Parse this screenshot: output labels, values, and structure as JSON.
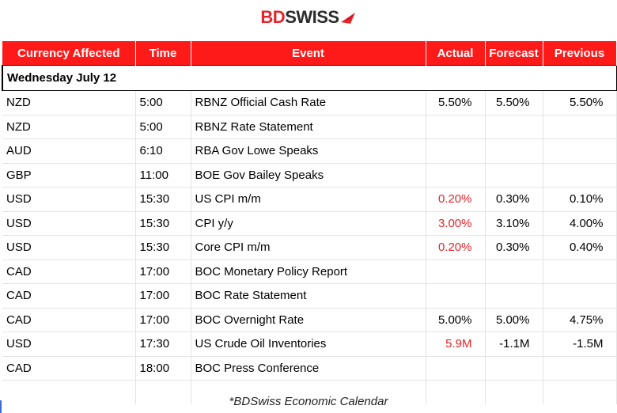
{
  "brand": {
    "part1": "BD",
    "part2": "SWISS"
  },
  "headers": [
    "Currency Affected",
    "Time",
    "Event",
    "Actual",
    "Forecast",
    "Previous"
  ],
  "date_label": "Wednesday July 12",
  "rows": [
    {
      "currency": "NZD",
      "time": "5:00",
      "event": "RBNZ Official Cash Rate",
      "actual": "5.50%",
      "forecast": "5.50%",
      "previous": "5.50%",
      "actual_red": false
    },
    {
      "currency": "NZD",
      "time": "5:00",
      "event": "RBNZ Rate Statement",
      "actual": "",
      "forecast": "",
      "previous": "",
      "actual_red": false
    },
    {
      "currency": "AUD",
      "time": "6:10",
      "event": "RBA Gov Lowe Speaks",
      "actual": "",
      "forecast": "",
      "previous": "",
      "actual_red": false
    },
    {
      "currency": "GBP",
      "time": "11:00",
      "event": "BOE Gov Bailey Speaks",
      "actual": "",
      "forecast": "",
      "previous": "",
      "actual_red": false
    },
    {
      "currency": "USD",
      "time": "15:30",
      "event": "US CPI m/m",
      "actual": "0.20%",
      "forecast": "0.30%",
      "previous": "0.10%",
      "actual_red": true
    },
    {
      "currency": "USD",
      "time": "15:30",
      "event": "CPI y/y",
      "actual": "3.00%",
      "forecast": "3.10%",
      "previous": "4.00%",
      "actual_red": true
    },
    {
      "currency": "USD",
      "time": "15:30",
      "event": "Core CPI m/m",
      "actual": "0.20%",
      "forecast": "0.30%",
      "previous": "0.40%",
      "actual_red": true
    },
    {
      "currency": "CAD",
      "time": "17:00",
      "event": "BOC Monetary Policy Report",
      "actual": "",
      "forecast": "",
      "previous": "",
      "actual_red": false
    },
    {
      "currency": "CAD",
      "time": "17:00",
      "event": "BOC Rate Statement",
      "actual": "",
      "forecast": "",
      "previous": "",
      "actual_red": false
    },
    {
      "currency": "CAD",
      "time": "17:00",
      "event": "BOC Overnight Rate",
      "actual": "5.00%",
      "forecast": "5.00%",
      "previous": "4.75%",
      "actual_red": false
    },
    {
      "currency": "USD",
      "time": "17:30",
      "event": "US Crude Oil Inventories",
      "actual": "5.9M",
      "forecast": "-1.1M",
      "previous": "-1.5M",
      "actual_red": true
    },
    {
      "currency": "CAD",
      "time": "18:00",
      "event": "BOC Press Conference",
      "actual": "",
      "forecast": "",
      "previous": "",
      "actual_red": false
    }
  ],
  "footer": "*BDSwiss Economic Calendar",
  "colors": {
    "header_bg": "#ff1a1a",
    "accent_red": "#e8232a",
    "grid": "#e4e4e4"
  }
}
